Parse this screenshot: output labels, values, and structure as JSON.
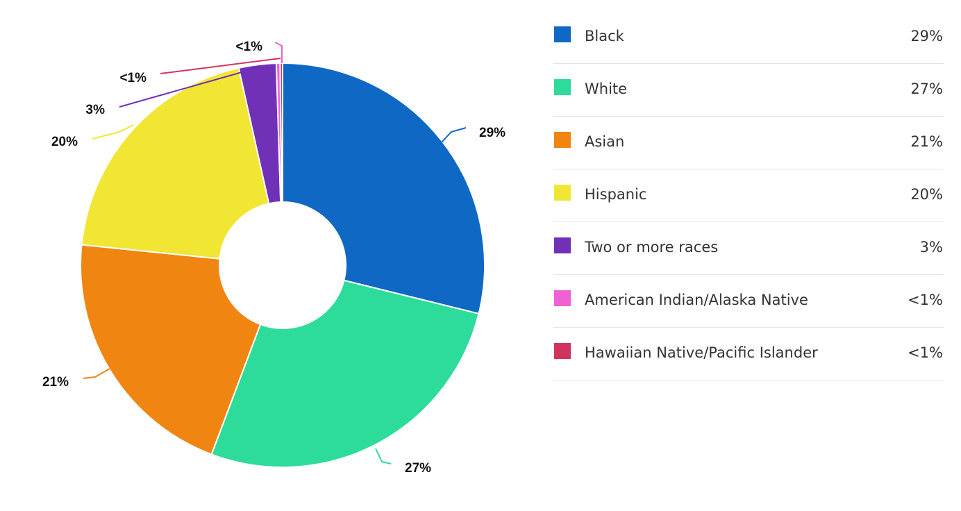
{
  "chart_data": {
    "type": "pie",
    "title": "",
    "donut": true,
    "legend_position": "right",
    "series": [
      {
        "name": "Black",
        "value": 29,
        "label": "29%",
        "color": "#1068c5"
      },
      {
        "name": "White",
        "value": 27,
        "label": "27%",
        "color": "#2ddc9a"
      },
      {
        "name": "Asian",
        "value": 21,
        "label": "21%",
        "color": "#f08512"
      },
      {
        "name": "Hispanic",
        "value": 20,
        "label": "20%",
        "color": "#f2e634"
      },
      {
        "name": "Two or more races",
        "value": 3,
        "label": "3%",
        "color": "#7030b8"
      },
      {
        "name": "American Indian/Alaska Native",
        "value": 0.3,
        "label": "<1%",
        "color": "#ef62d4"
      },
      {
        "name": "Hawaiian Native/Pacific Islander",
        "value": 0.2,
        "label": "<1%",
        "color": "#d0345e"
      }
    ]
  }
}
